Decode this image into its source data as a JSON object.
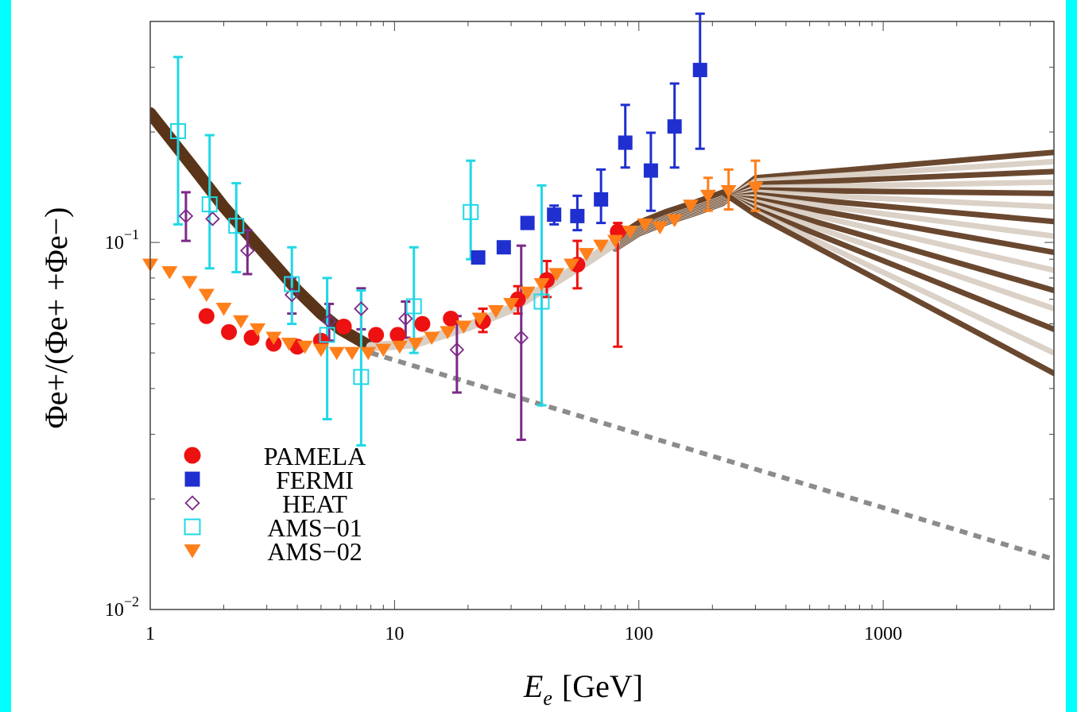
{
  "chart_data": {
    "type": "scatter",
    "xscale": "log",
    "yscale": "log",
    "xlim": [
      1,
      5000
    ],
    "ylim": [
      0.01,
      0.4
    ],
    "xlabel_symbol": "E",
    "xlabel_sub": "e",
    "xlabel_unit": "[GeV]",
    "ylabel": "Φe+/(Φe+ +Φe−)",
    "x_tick_labels": [
      {
        "value": 1,
        "label": "1"
      },
      {
        "value": 10,
        "label": "10"
      },
      {
        "value": 100,
        "label": "100"
      },
      {
        "value": 1000,
        "label": "1000"
      }
    ],
    "y_tick_labels": [
      {
        "value": 0.01,
        "base": "10",
        "exp": "−2"
      },
      {
        "value": 0.1,
        "base": "10",
        "exp": "−1"
      }
    ],
    "legend_position": "bottom-left",
    "series": [
      {
        "name": "PAMELA",
        "marker": "circle",
        "color": "#ee1111",
        "points": [
          {
            "x": 1.7,
            "y": 0.063
          },
          {
            "x": 2.1,
            "y": 0.057
          },
          {
            "x": 2.6,
            "y": 0.055
          },
          {
            "x": 3.2,
            "y": 0.053
          },
          {
            "x": 4.0,
            "y": 0.052
          },
          {
            "x": 5.0,
            "y": 0.054
          },
          {
            "x": 6.2,
            "y": 0.059
          },
          {
            "x": 8.4,
            "y": 0.056
          },
          {
            "x": 10.3,
            "y": 0.056
          },
          {
            "x": 13.0,
            "y": 0.06
          },
          {
            "x": 17.0,
            "y": 0.062
          },
          {
            "x": 23.0,
            "y": 0.061
          },
          {
            "x": 32.0,
            "y": 0.07
          },
          {
            "x": 42.0,
            "y": 0.079
          },
          {
            "x": 56.0,
            "y": 0.087
          },
          {
            "x": 82.0,
            "y": 0.107
          }
        ],
        "errors": [
          {
            "x": 23.0,
            "lo": 0.057,
            "hi": 0.066
          },
          {
            "x": 32.0,
            "lo": 0.064,
            "hi": 0.076
          },
          {
            "x": 42.0,
            "lo": 0.071,
            "hi": 0.089
          },
          {
            "x": 56.0,
            "lo": 0.075,
            "hi": 0.101
          },
          {
            "x": 82.0,
            "lo": 0.052,
            "hi": 0.113
          }
        ]
      },
      {
        "name": "FERMI",
        "marker": "square",
        "color": "#1f2fd0",
        "points": [
          {
            "x": 22.0,
            "y": 0.091
          },
          {
            "x": 28.0,
            "y": 0.097
          },
          {
            "x": 35.0,
            "y": 0.113
          },
          {
            "x": 45.0,
            "y": 0.119
          },
          {
            "x": 56.0,
            "y": 0.118
          },
          {
            "x": 70.0,
            "y": 0.131
          },
          {
            "x": 88.0,
            "y": 0.187
          },
          {
            "x": 112.0,
            "y": 0.157
          },
          {
            "x": 140.0,
            "y": 0.207
          },
          {
            "x": 178.0,
            "y": 0.295
          }
        ],
        "errors": [
          {
            "x": 45.0,
            "lo": 0.112,
            "hi": 0.126
          },
          {
            "x": 56.0,
            "lo": 0.108,
            "hi": 0.134
          },
          {
            "x": 70.0,
            "lo": 0.113,
            "hi": 0.158
          },
          {
            "x": 88.0,
            "lo": 0.16,
            "hi": 0.237
          },
          {
            "x": 112.0,
            "lo": 0.122,
            "hi": 0.199
          },
          {
            "x": 140.0,
            "lo": 0.16,
            "hi": 0.271
          },
          {
            "x": 178.0,
            "lo": 0.18,
            "hi": 0.42
          }
        ]
      },
      {
        "name": "HEAT",
        "marker": "diamond-open",
        "color": "#7b2a86",
        "points": [
          {
            "x": 1.4,
            "y": 0.118
          },
          {
            "x": 1.8,
            "y": 0.116
          },
          {
            "x": 2.5,
            "y": 0.095
          },
          {
            "x": 3.8,
            "y": 0.072
          },
          {
            "x": 5.4,
            "y": 0.061
          },
          {
            "x": 7.3,
            "y": 0.066
          },
          {
            "x": 11.1,
            "y": 0.062
          },
          {
            "x": 18.0,
            "y": 0.051
          },
          {
            "x": 33.0,
            "y": 0.055
          }
        ],
        "errors": [
          {
            "x": 1.4,
            "lo": 0.101,
            "hi": 0.137
          },
          {
            "x": 2.5,
            "lo": 0.082,
            "hi": 0.108
          },
          {
            "x": 3.8,
            "lo": 0.064,
            "hi": 0.08
          },
          {
            "x": 5.4,
            "lo": 0.054,
            "hi": 0.068
          },
          {
            "x": 7.3,
            "lo": 0.058,
            "hi": 0.075
          },
          {
            "x": 11.1,
            "lo": 0.055,
            "hi": 0.069
          },
          {
            "x": 18.0,
            "lo": 0.039,
            "hi": 0.063
          },
          {
            "x": 33.0,
            "lo": 0.029,
            "hi": 0.098
          }
        ]
      },
      {
        "name": "AMS−01",
        "marker": "square-open",
        "color": "#20d8e6",
        "points": [
          {
            "x": 1.3,
            "y": 0.201
          },
          {
            "x": 1.75,
            "y": 0.127
          },
          {
            "x": 2.25,
            "y": 0.111
          },
          {
            "x": 3.8,
            "y": 0.077
          },
          {
            "x": 5.3,
            "y": 0.056
          },
          {
            "x": 7.3,
            "y": 0.043
          },
          {
            "x": 12.0,
            "y": 0.067
          },
          {
            "x": 20.5,
            "y": 0.121
          },
          {
            "x": 40.0,
            "y": 0.069
          }
        ],
        "errors": [
          {
            "x": 1.3,
            "lo": 0.112,
            "hi": 0.32
          },
          {
            "x": 1.75,
            "lo": 0.085,
            "hi": 0.196
          },
          {
            "x": 2.25,
            "lo": 0.083,
            "hi": 0.145
          },
          {
            "x": 3.8,
            "lo": 0.06,
            "hi": 0.097
          },
          {
            "x": 5.3,
            "lo": 0.033,
            "hi": 0.08
          },
          {
            "x": 7.3,
            "lo": 0.028,
            "hi": 0.074
          },
          {
            "x": 12.0,
            "lo": 0.05,
            "hi": 0.097
          },
          {
            "x": 20.5,
            "lo": 0.09,
            "hi": 0.167
          },
          {
            "x": 40.0,
            "lo": 0.036,
            "hi": 0.143
          }
        ]
      },
      {
        "name": "AMS−02",
        "marker": "triangle-down",
        "color": "#ff7f1a",
        "points": [
          {
            "x": 1.0,
            "y": 0.087
          },
          {
            "x": 1.2,
            "y": 0.083
          },
          {
            "x": 1.45,
            "y": 0.078
          },
          {
            "x": 1.7,
            "y": 0.072
          },
          {
            "x": 2.0,
            "y": 0.066
          },
          {
            "x": 2.35,
            "y": 0.061
          },
          {
            "x": 2.75,
            "y": 0.058
          },
          {
            "x": 3.2,
            "y": 0.055
          },
          {
            "x": 3.7,
            "y": 0.053
          },
          {
            "x": 4.3,
            "y": 0.052
          },
          {
            "x": 5.0,
            "y": 0.051
          },
          {
            "x": 5.8,
            "y": 0.05
          },
          {
            "x": 6.7,
            "y": 0.05
          },
          {
            "x": 7.8,
            "y": 0.05
          },
          {
            "x": 9.0,
            "y": 0.051
          },
          {
            "x": 10.5,
            "y": 0.052
          },
          {
            "x": 12.2,
            "y": 0.053
          },
          {
            "x": 14.2,
            "y": 0.055
          },
          {
            "x": 16.5,
            "y": 0.057
          },
          {
            "x": 19.2,
            "y": 0.059
          },
          {
            "x": 22.3,
            "y": 0.062
          },
          {
            "x": 26.0,
            "y": 0.065
          },
          {
            "x": 30.0,
            "y": 0.068
          },
          {
            "x": 35.0,
            "y": 0.073
          },
          {
            "x": 40.0,
            "y": 0.077
          },
          {
            "x": 46.0,
            "y": 0.082
          },
          {
            "x": 53.0,
            "y": 0.087
          },
          {
            "x": 61.0,
            "y": 0.093
          },
          {
            "x": 70.0,
            "y": 0.098
          },
          {
            "x": 80.0,
            "y": 0.101
          },
          {
            "x": 92.0,
            "y": 0.107
          },
          {
            "x": 106.0,
            "y": 0.112
          },
          {
            "x": 122.0,
            "y": 0.11
          },
          {
            "x": 140.0,
            "y": 0.115
          },
          {
            "x": 163.0,
            "y": 0.126
          },
          {
            "x": 192.0,
            "y": 0.134
          },
          {
            "x": 233.0,
            "y": 0.138
          },
          {
            "x": 300.0,
            "y": 0.141
          }
        ],
        "errors": [
          {
            "x": 192.0,
            "lo": 0.122,
            "hi": 0.15
          },
          {
            "x": 233.0,
            "lo": 0.123,
            "hi": 0.158
          },
          {
            "x": 300.0,
            "lo": 0.122,
            "hi": 0.167
          }
        ]
      }
    ],
    "model_band": {
      "color": "#5a3418",
      "light_color": "#d9cfc4",
      "low_energy_x": [
        1.0,
        1.5,
        2.0,
        3.0,
        4.0,
        5.0,
        6.0,
        8.0
      ],
      "low_energy_y": [
        0.225,
        0.16,
        0.125,
        0.092,
        0.074,
        0.064,
        0.058,
        0.052
      ],
      "high_energy_endpoints": [
        {
          "peak_x": 300,
          "peak_y": 0.15,
          "end_y": 0.176
        },
        {
          "peak_x": 300,
          "peak_y": 0.147,
          "end_y": 0.166
        },
        {
          "peak_x": 300,
          "peak_y": 0.144,
          "end_y": 0.156
        },
        {
          "peak_x": 300,
          "peak_y": 0.141,
          "end_y": 0.146
        },
        {
          "peak_x": 300,
          "peak_y": 0.139,
          "end_y": 0.136
        },
        {
          "peak_x": 300,
          "peak_y": 0.137,
          "end_y": 0.125
        },
        {
          "peak_x": 300,
          "peak_y": 0.135,
          "end_y": 0.114
        },
        {
          "peak_x": 300,
          "peak_y": 0.133,
          "end_y": 0.104
        },
        {
          "peak_x": 300,
          "peak_y": 0.131,
          "end_y": 0.094
        },
        {
          "peak_x": 300,
          "peak_y": 0.129,
          "end_y": 0.084
        },
        {
          "peak_x": 300,
          "peak_y": 0.127,
          "end_y": 0.074
        },
        {
          "peak_x": 300,
          "peak_y": 0.125,
          "end_y": 0.066
        },
        {
          "peak_x": 300,
          "peak_y": 0.123,
          "end_y": 0.058
        },
        {
          "peak_x": 300,
          "peak_y": 0.121,
          "end_y": 0.05
        },
        {
          "peak_x": 300,
          "peak_y": 0.119,
          "end_y": 0.044
        }
      ]
    },
    "background_line": {
      "style": "dashed",
      "color": "#8c8c8c",
      "x": [
        8,
        5000
      ],
      "y": [
        0.05,
        0.0137
      ]
    }
  }
}
